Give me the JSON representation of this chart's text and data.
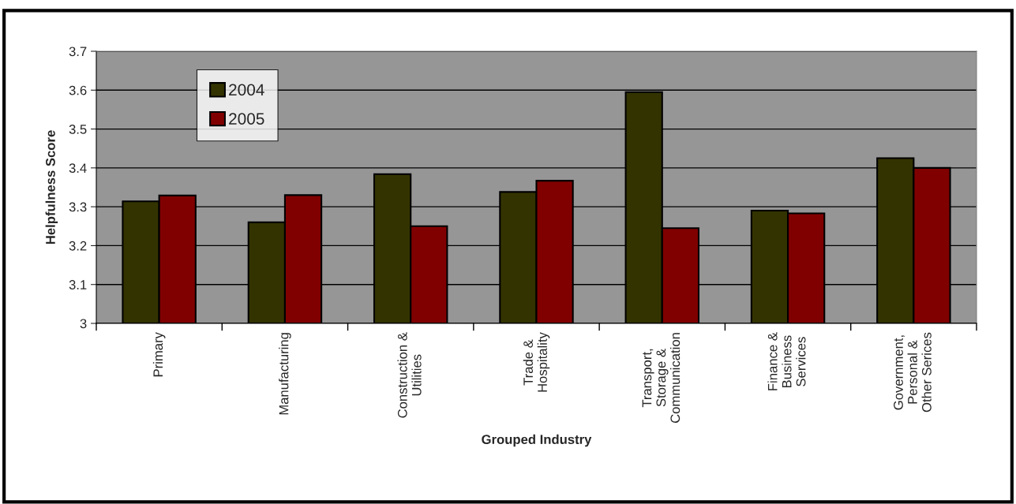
{
  "chart_data": {
    "type": "bar",
    "xlabel": "Grouped Industry",
    "ylabel": "Helpfulness Score",
    "categories": [
      "Primary",
      "Manufacturing",
      "Construction &\nUtilities",
      "Trade &\nHospitality",
      "Transport,\nStorage &\nCommunication",
      "Finance &\nBusiness\nServices",
      "Government,\nPersonal &\nOther Serices"
    ],
    "series": [
      {
        "name": "2004",
        "color": "#333300",
        "values": [
          3.314,
          3.26,
          3.384,
          3.338,
          3.595,
          3.29,
          3.425
        ]
      },
      {
        "name": "2005",
        "color": "#800000",
        "values": [
          3.329,
          3.33,
          3.25,
          3.367,
          3.245,
          3.283,
          3.4
        ]
      }
    ],
    "ylim": [
      3,
      3.7
    ],
    "yticks": [
      3,
      3.1,
      3.2,
      3.3,
      3.4,
      3.5,
      3.6,
      3.7
    ],
    "grid": "y",
    "legend": "top left"
  }
}
